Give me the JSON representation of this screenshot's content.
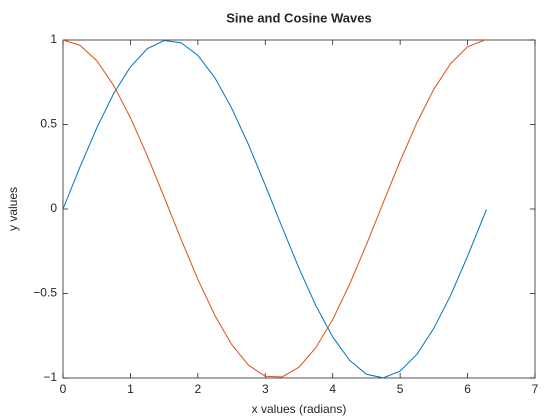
{
  "chart_data": {
    "type": "line",
    "title": "Sine and Cosine Waves",
    "x_label": "x values (radians)",
    "y_label": "y values",
    "x": [
      0,
      0.25,
      0.5,
      0.75,
      1,
      1.25,
      1.5,
      1.75,
      2,
      2.25,
      2.5,
      2.75,
      3,
      3.25,
      3.5,
      3.75,
      4,
      4.25,
      4.5,
      4.75,
      5,
      5.25,
      5.5,
      5.75,
      6,
      6.25,
      6.28
    ],
    "series": [
      {
        "color": "#0072bd",
        "values": [
          0,
          0.247,
          0.479,
          0.682,
          0.841,
          0.949,
          0.997,
          0.984,
          0.909,
          0.778,
          0.598,
          0.382,
          0.141,
          -0.108,
          -0.351,
          -0.572,
          -0.757,
          -0.895,
          -0.978,
          -0.999,
          -0.959,
          -0.859,
          -0.706,
          -0.51,
          -0.279,
          -0.033,
          -0.003
        ]
      },
      {
        "color": "#d95319",
        "values": [
          1,
          0.969,
          0.878,
          0.732,
          0.54,
          0.315,
          0.071,
          -0.178,
          -0.416,
          -0.628,
          -0.801,
          -0.924,
          -0.99,
          -0.994,
          -0.936,
          -0.82,
          -0.654,
          -0.446,
          -0.211,
          0.038,
          0.284,
          0.512,
          0.709,
          0.861,
          0.96,
          0.999,
          1
        ]
      }
    ],
    "xlim": [
      0,
      7
    ],
    "xticks": [
      0,
      1,
      2,
      3,
      4,
      5,
      6,
      7
    ],
    "ylim": [
      -1,
      1
    ],
    "yticks": [
      {
        "value": -1,
        "label": "−1"
      },
      {
        "value": -0.5,
        "label": "−0.5"
      },
      0,
      0.5,
      1
    ],
    "grid": false
  }
}
